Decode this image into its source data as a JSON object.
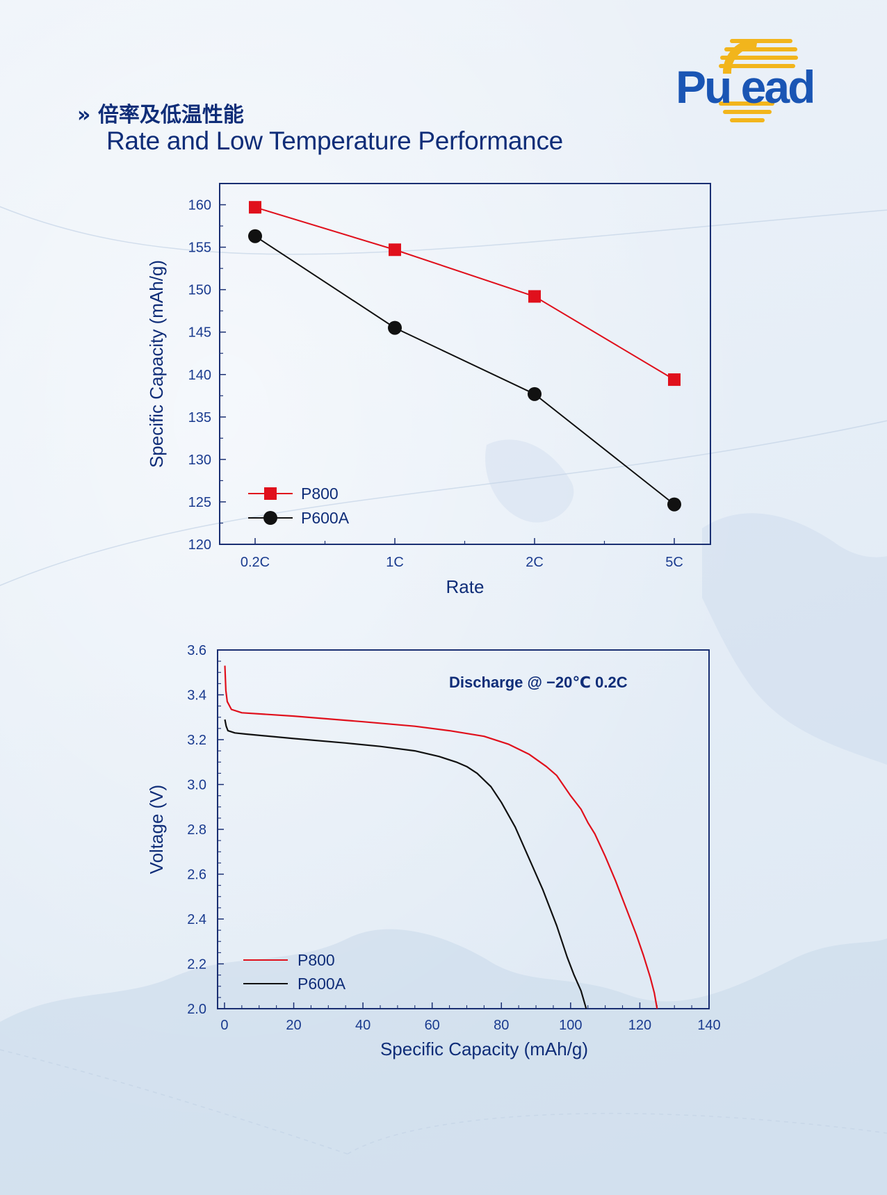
{
  "header": {
    "title_cn": "倍率及低温性能",
    "title_en": "Rate and Low Temperature Performance",
    "chevron": "»"
  },
  "logo": {
    "text": "Pulead",
    "colors": {
      "blue": "#1a55b4",
      "gold": "#f2b51c"
    }
  },
  "colors": {
    "p800": "#e0101c",
    "p600a": "#111111",
    "axis": "#1a2f72",
    "text": "#1a3b8f",
    "title": "#0f2d78"
  },
  "chart_data": [
    {
      "type": "line",
      "categories": [
        "0.2C",
        "1C",
        "2C",
        "5C"
      ],
      "series": [
        {
          "name": "P800",
          "values": [
            159.7,
            154.7,
            149.2,
            139.4
          ],
          "marker": "square"
        },
        {
          "name": "P600A",
          "values": [
            156.3,
            145.5,
            137.7,
            124.7
          ],
          "marker": "circle"
        }
      ],
      "xlabel": "Rate",
      "ylabel": "Specific Capacity (mAh/g)",
      "ylim": [
        120,
        162.5
      ],
      "yticks": [
        120,
        125,
        130,
        135,
        140,
        145,
        150,
        155,
        160
      ],
      "grid": false,
      "legend": "bottom-left"
    },
    {
      "type": "line",
      "series": [
        {
          "name": "P800",
          "points": [
            [
              0.1,
              3.53
            ],
            [
              0.4,
              3.42
            ],
            [
              0.8,
              3.37
            ],
            [
              2,
              3.335
            ],
            [
              5,
              3.32
            ],
            [
              20,
              3.305
            ],
            [
              40,
              3.28
            ],
            [
              55,
              3.26
            ],
            [
              65,
              3.24
            ],
            [
              75,
              3.215
            ],
            [
              82,
              3.18
            ],
            [
              88,
              3.135
            ],
            [
              93,
              3.08
            ],
            [
              96,
              3.04
            ],
            [
              100,
              2.95
            ],
            [
              103,
              2.89
            ],
            [
              105,
              2.83
            ],
            [
              107,
              2.78
            ],
            [
              110,
              2.68
            ],
            [
              113,
              2.57
            ],
            [
              116,
              2.45
            ],
            [
              119,
              2.33
            ],
            [
              121,
              2.24
            ],
            [
              123,
              2.14
            ],
            [
              124.2,
              2.07
            ],
            [
              125,
              2.0
            ]
          ]
        },
        {
          "name": "P600A",
          "points": [
            [
              0.1,
              3.29
            ],
            [
              0.5,
              3.26
            ],
            [
              1,
              3.24
            ],
            [
              3,
              3.23
            ],
            [
              6,
              3.225
            ],
            [
              20,
              3.205
            ],
            [
              35,
              3.185
            ],
            [
              45,
              3.17
            ],
            [
              55,
              3.15
            ],
            [
              62,
              3.125
            ],
            [
              67,
              3.1
            ],
            [
              70,
              3.08
            ],
            [
              73,
              3.05
            ],
            [
              77,
              2.99
            ],
            [
              80,
              2.92
            ],
            [
              84,
              2.81
            ],
            [
              88,
              2.67
            ],
            [
              92,
              2.53
            ],
            [
              96,
              2.37
            ],
            [
              99,
              2.23
            ],
            [
              101,
              2.15
            ],
            [
              103,
              2.08
            ],
            [
              104.5,
              2.0
            ]
          ]
        }
      ],
      "xlabel": "Specific Capacity (mAh/g)",
      "ylabel": "Voltage (V)",
      "xlim": [
        -2,
        140
      ],
      "ylim": [
        2.0,
        3.6
      ],
      "xticks": [
        0,
        20,
        40,
        60,
        80,
        100,
        120,
        140
      ],
      "yticks": [
        2.0,
        2.2,
        2.4,
        2.6,
        2.8,
        3.0,
        3.2,
        3.4,
        3.6
      ],
      "annotation": "Discharge @ −20℃ 0.2C",
      "grid": false,
      "legend": "bottom-left"
    }
  ]
}
